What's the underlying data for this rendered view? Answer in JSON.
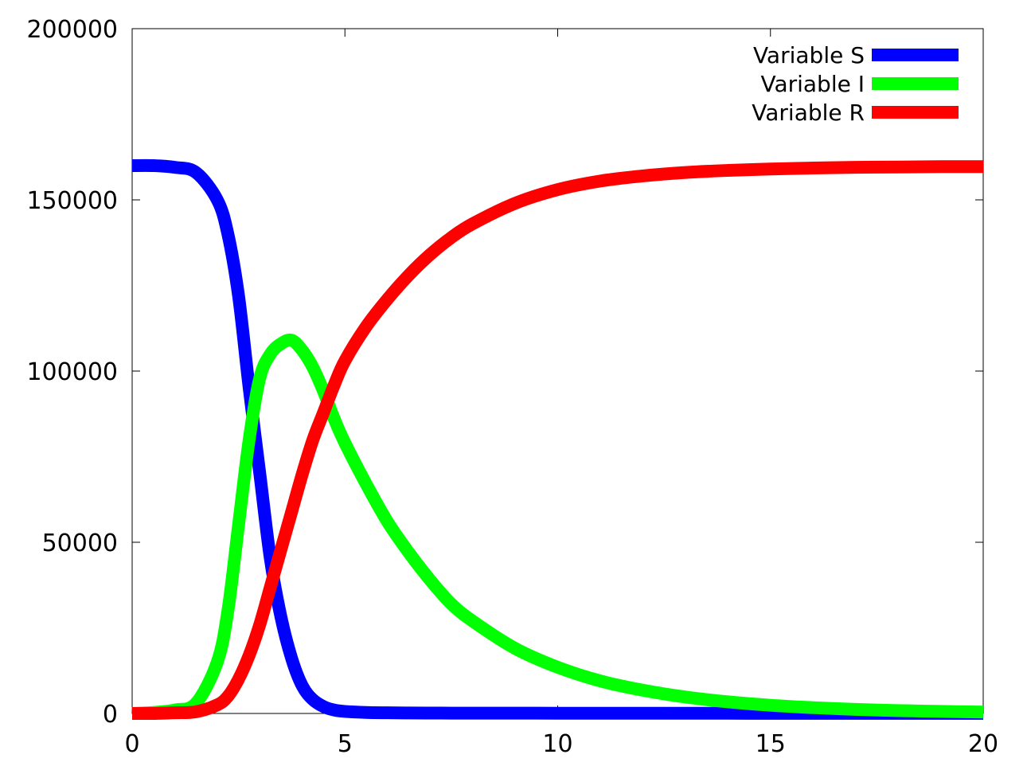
{
  "chart_data": {
    "type": "line",
    "title": "",
    "xlabel": "",
    "ylabel": "",
    "xlim": [
      0,
      20
    ],
    "ylim": [
      0,
      200000
    ],
    "xticks": [
      0,
      5,
      10,
      15,
      20
    ],
    "yticks": [
      0,
      50000,
      100000,
      150000,
      200000
    ],
    "xtick_labels": [
      "0",
      "5",
      "10",
      "15",
      "20"
    ],
    "ytick_labels": [
      "0",
      "50000",
      "100000",
      "150000",
      "200000"
    ],
    "grid": false,
    "legend_position": "top-right",
    "x": [
      0,
      0.5,
      1,
      1.5,
      2,
      2.25,
      2.5,
      2.75,
      3,
      3.25,
      3.5,
      3.75,
      4,
      4.25,
      4.5,
      4.75,
      5,
      5.5,
      6,
      6.5,
      7,
      7.5,
      8,
      9,
      10,
      11,
      12,
      13,
      14,
      15,
      16,
      17,
      18,
      19,
      20
    ],
    "series": [
      {
        "name": "Variable S",
        "color": "#0000ff",
        "values": [
          160000,
          160000,
          159500,
          158000,
          150000,
          140000,
          122000,
          95000,
          70000,
          45000,
          28000,
          16000,
          8000,
          4000,
          2000,
          1000,
          600,
          300,
          200,
          150,
          120,
          100,
          90,
          80,
          70,
          60,
          55,
          50,
          45,
          40,
          40,
          40,
          40,
          40,
          40
        ]
      },
      {
        "name": "Variable I",
        "color": "#00ff00",
        "values": [
          0,
          300,
          1000,
          3000,
          15000,
          30000,
          55000,
          80000,
          98000,
          105000,
          108000,
          109000,
          106000,
          101000,
          94000,
          86000,
          79000,
          67000,
          56000,
          47000,
          39000,
          32000,
          27000,
          19000,
          13500,
          9500,
          6800,
          4800,
          3400,
          2400,
          1700,
          1200,
          850,
          600,
          400
        ]
      },
      {
        "name": "Variable R",
        "color": "#ff0000",
        "values": [
          0,
          0,
          200,
          500,
          2500,
          5000,
          10000,
          17000,
          26000,
          37000,
          48000,
          59000,
          70000,
          80000,
          88000,
          96000,
          103000,
          113000,
          121000,
          128000,
          134000,
          139000,
          143000,
          149000,
          153000,
          155500,
          157000,
          158000,
          158600,
          159000,
          159300,
          159500,
          159600,
          159700,
          159700
        ]
      }
    ]
  }
}
